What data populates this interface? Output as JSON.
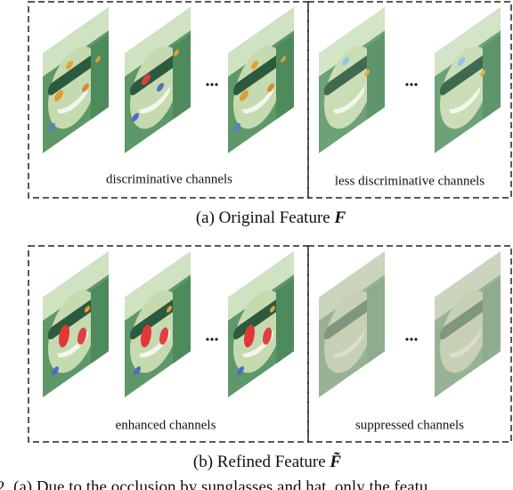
{
  "panel_a": {
    "left_label": "discriminative channels",
    "right_label": "less discriminative channels",
    "ellipsis_left": "...",
    "ellipsis_right": "...",
    "caption": {
      "text": "(a) Original Feature",
      "symbol": "F"
    }
  },
  "panel_b": {
    "left_label": "enhanced channels",
    "right_label": "suppressed channels",
    "ellipsis_left": "...",
    "ellipsis_right": "...",
    "caption": {
      "text": "(b) Refined Feature",
      "symbol": "F̃"
    }
  },
  "footer": {
    "text": "2.   (a) Due to the occlusion by sunglasses and hat, only the featu"
  }
}
